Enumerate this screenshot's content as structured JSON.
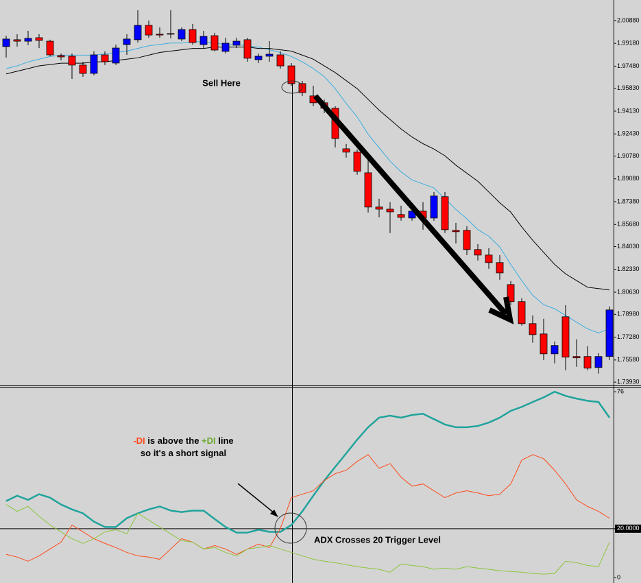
{
  "chart_data": [
    {
      "type": "candlestick",
      "up_color": "#0000ff",
      "down_color": "#ff0000",
      "open": [
        1.9894,
        1.9945,
        1.9934,
        1.996,
        1.9934,
        1.9827,
        1.9822,
        1.9756,
        1.9694,
        1.9832,
        1.9771,
        1.9909,
        1.9945,
        2.0052,
        1.9986,
        1.9991,
        1.995,
        2.0021,
        1.9909,
        1.9975,
        1.9858,
        1.9904,
        1.9945,
        1.9796,
        1.9822,
        1.9832,
        1.975,
        1.9618,
        1.9526,
        1.9475,
        1.9434,
        1.9132,
        1.9107,
        1.8953,
        1.8698,
        1.8682,
        1.8642,
        1.8616,
        1.8667,
        1.8616,
        1.8775,
        1.8524,
        1.8524,
        1.8381,
        1.834,
        1.8284,
        1.812,
        1.7993,
        1.7829,
        1.7752,
        1.7604,
        1.788,
        1.7584,
        1.7584,
        1.7502,
        1.7584
      ],
      "high": [
        1.9975,
        1.9986,
        2.0011,
        1.9986,
        1.9945,
        1.9842,
        1.9842,
        1.9781,
        1.9858,
        1.9858,
        1.9909,
        1.9986,
        2.0164,
        2.0088,
        2.0037,
        2.0164,
        2.0037,
        2.0062,
        2.0011,
        1.9996,
        1.996,
        1.996,
        1.996,
        1.9842,
        1.9934,
        1.9858,
        1.9771,
        1.9638,
        1.9602,
        1.95,
        1.9449,
        1.9168,
        1.9127,
        1.9066,
        1.8759,
        1.8734,
        1.8708,
        1.8708,
        1.8734,
        1.881,
        1.881,
        1.858,
        1.8555,
        1.8422,
        1.8391,
        1.834,
        1.8146,
        1.8018,
        1.789,
        1.7865,
        1.7696,
        1.7967,
        1.7712,
        1.7661,
        1.7609,
        1.7957
      ],
      "low": [
        1.9812,
        1.9894,
        1.9904,
        1.9883,
        1.9822,
        1.9791,
        1.9653,
        1.9669,
        1.9679,
        1.9756,
        1.9756,
        1.9832,
        1.9924,
        1.996,
        1.996,
        1.9955,
        1.9934,
        1.9909,
        1.9883,
        1.9858,
        1.9842,
        1.9883,
        1.9781,
        1.9771,
        1.9781,
        1.973,
        1.9602,
        1.9526,
        1.9449,
        1.9398,
        1.9142,
        1.9066,
        1.8938,
        1.8657,
        1.8621,
        1.8504,
        1.8596,
        1.8596,
        1.8529,
        1.8596,
        1.8504,
        1.8427,
        1.834,
        1.8299,
        1.8238,
        1.8156,
        1.7967,
        1.7814,
        1.7686,
        1.7558,
        1.7533,
        1.7482,
        1.7507,
        1.7482,
        1.7456,
        1.7558
      ],
      "close": [
        1.995,
        1.9934,
        1.9955,
        1.994,
        1.9832,
        1.9817,
        1.9756,
        1.9694,
        1.9832,
        1.9781,
        1.9883,
        1.995,
        2.0052,
        1.998,
        1.998,
        1.9986,
        2.0021,
        1.9924,
        1.997,
        1.9868,
        1.9919,
        1.9934,
        1.9807,
        1.9822,
        1.9837,
        1.975,
        1.9618,
        1.9551,
        1.9475,
        1.9434,
        1.9209,
        1.9107,
        1.8964,
        1.8698,
        1.8682,
        1.8662,
        1.8621,
        1.8667,
        1.8616,
        1.878,
        1.8529,
        1.8514,
        1.8381,
        1.834,
        1.8284,
        1.8207,
        1.7993,
        1.7829,
        1.7747,
        1.7604,
        1.7666,
        1.7579,
        1.7574,
        1.7497,
        1.7584,
        1.7931
      ],
      "overlays": [
        {
          "color": "#3aaee0",
          "values": [
            1.973,
            1.975,
            1.978,
            1.98,
            1.982,
            1.983,
            1.983,
            1.983,
            1.983,
            1.984,
            1.985,
            1.986,
            1.988,
            1.99,
            1.991,
            1.992,
            1.992,
            1.993,
            1.993,
            1.992,
            1.991,
            1.991,
            1.99,
            1.989,
            1.987,
            1.985,
            1.982,
            1.978,
            1.973,
            1.967,
            1.958,
            1.947,
            1.937,
            1.924,
            1.914,
            1.904,
            1.896,
            1.89,
            1.887,
            1.884,
            1.876,
            1.868,
            1.861,
            1.853,
            1.848,
            1.84,
            1.827,
            1.815,
            1.804,
            1.797,
            1.794,
            1.789,
            1.784,
            1.779,
            1.776,
            1.779
          ]
        },
        {
          "color": "#000000",
          "values": [
            1.969,
            1.971,
            1.973,
            1.975,
            1.976,
            1.977,
            1.977,
            1.977,
            1.978,
            1.978,
            1.979,
            1.98,
            1.981,
            1.983,
            1.985,
            1.986,
            1.987,
            1.988,
            1.988,
            1.989,
            1.989,
            1.989,
            1.989,
            1.988,
            1.988,
            1.987,
            1.986,
            1.983,
            1.98,
            1.975,
            1.97,
            1.964,
            1.958,
            1.95,
            1.942,
            1.935,
            1.928,
            1.922,
            1.917,
            1.913,
            1.908,
            1.901,
            1.895,
            1.889,
            1.881,
            1.873,
            1.866,
            1.855,
            1.845,
            1.836,
            1.827,
            1.82,
            1.815,
            1.81,
            1.809,
            1.808
          ]
        }
      ],
      "ylim": [
        1.7368,
        2.0241
      ],
      "yticks": [
        {
          "value": 2.0088,
          "label": "2.00880"
        },
        {
          "value": 1.9918,
          "label": "1.99180"
        },
        {
          "value": 1.9748,
          "label": "1.97480"
        },
        {
          "value": 1.9583,
          "label": "1.95830"
        },
        {
          "value": 1.9413,
          "label": "1.94130"
        },
        {
          "value": 1.9243,
          "label": "1.92430"
        },
        {
          "value": 1.9078,
          "label": "1.90780"
        },
        {
          "value": 1.8908,
          "label": "1.89080"
        },
        {
          "value": 1.8738,
          "label": "1.87380"
        },
        {
          "value": 1.8568,
          "label": "1.85680"
        },
        {
          "value": 1.8403,
          "label": "1.84030"
        },
        {
          "value": 1.8233,
          "label": "1.82330"
        },
        {
          "value": 1.8063,
          "label": "1.80630"
        },
        {
          "value": 1.7898,
          "label": "1.78980"
        },
        {
          "value": 1.7728,
          "label": "1.77280"
        },
        {
          "value": 1.7558,
          "label": "1.75580"
        },
        {
          "value": 1.7393,
          "label": "1.73930"
        }
      ],
      "annotations": [
        "Sell Here"
      ]
    },
    {
      "type": "line",
      "series": [
        {
          "color": "#1fa39c",
          "values": [
            31.3,
            33.5,
            31.8,
            34.1,
            32.7,
            29.9,
            27.9,
            26.3,
            22.9,
            20.7,
            20.7,
            24.3,
            26.3,
            27.9,
            29.1,
            27.4,
            26.8,
            27.4,
            27.4,
            24.0,
            20.7,
            18.4,
            18.4,
            19.6,
            18.7,
            18.7,
            21.5,
            27.1,
            33.5,
            39.7,
            45.3,
            50.8,
            56.4,
            61.5,
            65.4,
            66.2,
            65.4,
            66.5,
            67.0,
            64.8,
            62.6,
            61.5,
            61.5,
            62.0,
            63.4,
            65.4,
            68.2,
            69.8,
            71.8,
            73.7,
            76.0,
            74.3,
            73.2,
            72.3,
            71.8,
            65.4
          ]
        },
        {
          "color": "#ff4a1a",
          "values": [
            9.5,
            8.4,
            6.7,
            8.9,
            11.7,
            14.5,
            21.5,
            18.7,
            15.9,
            14.0,
            12.3,
            10.3,
            8.9,
            8.4,
            7.5,
            11.7,
            15.9,
            14.5,
            11.7,
            13.1,
            11.7,
            9.5,
            11.7,
            13.7,
            12.3,
            20.1,
            32.7,
            34.1,
            35.5,
            39.7,
            42.5,
            43.9,
            47.5,
            50.3,
            44.7,
            46.6,
            41.1,
            37.4,
            38.3,
            35.5,
            32.7,
            34.6,
            35.5,
            34.6,
            33.5,
            34.1,
            38.3,
            48.0,
            50.3,
            48.6,
            43.9,
            38.3,
            31.8,
            29.1,
            27.1,
            24.3
          ]
        },
        {
          "color": "#8cc63c",
          "values": [
            29.9,
            27.1,
            29.1,
            25.1,
            21.5,
            18.7,
            15.9,
            14.0,
            15.9,
            18.7,
            19.6,
            17.9,
            26.3,
            23.5,
            20.7,
            17.9,
            15.1,
            14.5,
            11.7,
            12.3,
            10.3,
            8.9,
            11.7,
            12.3,
            13.1,
            11.7,
            10.3,
            8.9,
            7.5,
            6.7,
            6.1,
            5.3,
            4.5,
            3.9,
            3.4,
            2.2,
            5.6,
            5.0,
            4.5,
            3.4,
            3.9,
            3.4,
            4.5,
            3.9,
            3.4,
            2.8,
            2.5,
            2.2,
            1.7,
            1.4,
            1.7,
            6.7,
            6.1,
            5.0,
            4.5,
            14.5
          ]
        }
      ],
      "ylim": [
        -2.2,
        78
      ],
      "yticks": [
        76,
        {
          "value": 20,
          "label": "20.0000"
        },
        0
      ],
      "annotations": [
        {
          "parts": [
            {
              "text": "-DI",
              "color": "#ff4a1a"
            },
            {
              "text": " is above the "
            },
            {
              "text": "+DI",
              "color": "#6aa82a"
            },
            {
              "text": " line so it's a short signal"
            }
          ]
        },
        "ADX Crosses 20 Trigger Level"
      ]
    }
  ]
}
